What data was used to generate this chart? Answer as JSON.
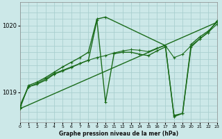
{
  "title": "Graphe pression niveau de la mer (hPa)",
  "bg_color": "#cce8e8",
  "grid_color": "#aacfcf",
  "line_color": "#1a6b1a",
  "xlim": [
    0,
    23
  ],
  "ylim": [
    1018.55,
    1020.35
  ],
  "yticks": [
    1019,
    1020
  ],
  "xticks": [
    0,
    1,
    2,
    3,
    4,
    5,
    6,
    7,
    8,
    9,
    10,
    11,
    12,
    13,
    14,
    15,
    16,
    17,
    18,
    19,
    20,
    21,
    22,
    23
  ],
  "series": [
    {
      "x": [
        0,
        1,
        2,
        3,
        4,
        5,
        6,
        7,
        8,
        9,
        10,
        11,
        12,
        13,
        14,
        15,
        16,
        17,
        18,
        19,
        20,
        21,
        22,
        23
      ],
      "y": [
        1018.78,
        1019.08,
        1019.12,
        1019.18,
        1019.27,
        1019.32,
        1019.37,
        1019.43,
        1019.48,
        1020.08,
        1018.85,
        1019.58,
        1019.6,
        1019.6,
        1019.57,
        1019.55,
        1019.62,
        1019.68,
        1018.65,
        1018.68,
        1019.72,
        1019.83,
        1019.92,
        1020.05
      ],
      "marker": true,
      "ms": 3.5,
      "lw": 1.0
    },
    {
      "x": [
        0,
        1,
        2,
        3,
        4,
        5,
        6,
        7,
        8,
        9,
        10,
        11,
        12,
        13,
        14,
        15,
        16,
        17,
        18,
        19,
        20,
        21,
        22,
        23
      ],
      "y": [
        1018.8,
        1019.08,
        1019.13,
        1019.2,
        1019.28,
        1019.33,
        1019.38,
        1019.43,
        1019.48,
        1019.52,
        1019.55,
        1019.59,
        1019.62,
        1019.64,
        1019.63,
        1019.61,
        1019.66,
        1019.7,
        1019.52,
        1019.57,
        1019.7,
        1019.8,
        1019.9,
        1020.02
      ],
      "marker": true,
      "ms": 3.0,
      "lw": 0.8
    },
    {
      "x": [
        0,
        23
      ],
      "y": [
        1018.75,
        1020.05
      ],
      "marker": true,
      "ms": 3.5,
      "lw": 1.0
    },
    {
      "x": [
        0,
        1,
        2,
        3,
        4,
        5,
        6,
        7,
        8,
        9,
        10,
        17,
        18,
        19,
        20,
        21,
        22,
        23
      ],
      "y": [
        1018.75,
        1019.1,
        1019.15,
        1019.22,
        1019.3,
        1019.38,
        1019.45,
        1019.52,
        1019.6,
        1020.1,
        1020.13,
        1019.7,
        1018.63,
        1018.68,
        1019.68,
        1019.8,
        1019.9,
        1020.07
      ],
      "marker": true,
      "ms": 3.5,
      "lw": 1.0
    }
  ]
}
